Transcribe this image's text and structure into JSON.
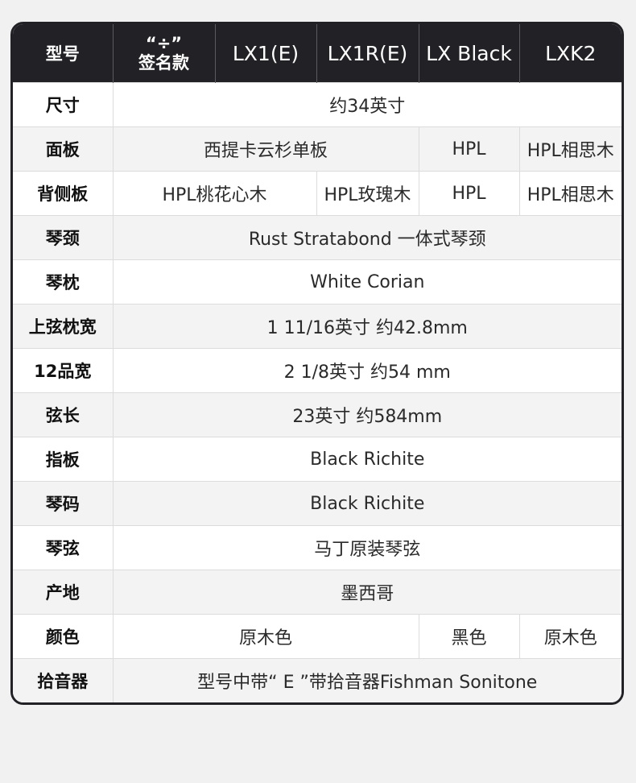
{
  "header": {
    "col0": "型号",
    "col1_line1": "“÷”",
    "col1_line2": "签名款",
    "col2": "LX1(E)",
    "col3": "LX1R(E)",
    "col4": "LX Black",
    "col5": "LXK2"
  },
  "rows": [
    {
      "label": "尺寸",
      "cells": [
        {
          "text": "约34英寸",
          "span": 5
        }
      ]
    },
    {
      "label": "面板",
      "cells": [
        {
          "text": "西提卡云杉单板",
          "span": 3
        },
        {
          "text": "HPL",
          "span": 1
        },
        {
          "text": "HPL相思木",
          "span": 1
        }
      ]
    },
    {
      "label": "背侧板",
      "cells": [
        {
          "text": "HPL桃花心木",
          "span": 2
        },
        {
          "text": "HPL玫瑰木",
          "span": 1
        },
        {
          "text": "HPL",
          "span": 1
        },
        {
          "text": "HPL相思木",
          "span": 1
        }
      ]
    },
    {
      "label": "琴颈",
      "cells": [
        {
          "text": "Rust Stratabond 一体式琴颈",
          "span": 5
        }
      ]
    },
    {
      "label": "琴枕",
      "cells": [
        {
          "text": "White Corian",
          "span": 5
        }
      ]
    },
    {
      "label": "上弦枕宽",
      "cells": [
        {
          "text": "1 11/16英寸  约42.8mm",
          "span": 5
        }
      ]
    },
    {
      "label": "12品宽",
      "cells": [
        {
          "text": "2 1/8英寸  约54 mm",
          "span": 5
        }
      ]
    },
    {
      "label": "弦长",
      "cells": [
        {
          "text": "23英寸  约584mm",
          "span": 5
        }
      ]
    },
    {
      "label": "指板",
      "cells": [
        {
          "text": "Black Richite",
          "span": 5
        }
      ]
    },
    {
      "label": "琴码",
      "cells": [
        {
          "text": "Black Richite",
          "span": 5
        }
      ]
    },
    {
      "label": "琴弦",
      "cells": [
        {
          "text": "马丁原装琴弦",
          "span": 5
        }
      ]
    },
    {
      "label": "产地",
      "cells": [
        {
          "text": "墨西哥",
          "span": 5
        }
      ]
    },
    {
      "label": "颜色",
      "cells": [
        {
          "text": "原木色",
          "span": 3
        },
        {
          "text": "黑色",
          "span": 1
        },
        {
          "text": "原木色",
          "span": 1
        }
      ]
    },
    {
      "label": "拾音器",
      "cells": [
        {
          "text": "型号中带“ E ”带拾音器Fishman Sonitone",
          "span": 5
        }
      ]
    }
  ]
}
